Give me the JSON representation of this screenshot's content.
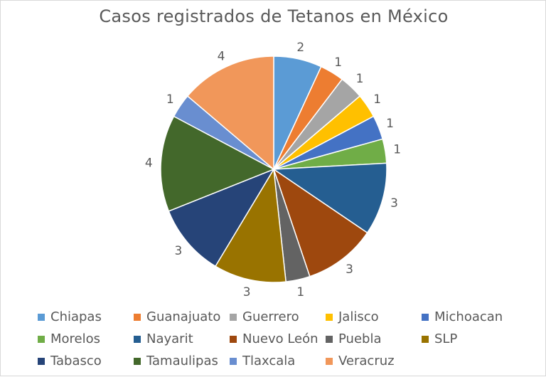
{
  "chart_data": {
    "type": "pie",
    "title": "Casos registrados de Tetanos en México",
    "start_angle_deg": 0,
    "direction": "clockwise",
    "legend_position": "bottom",
    "slices": [
      {
        "label": "Chiapas",
        "value": 2,
        "color": "#5b9bd5"
      },
      {
        "label": "Guanajuato",
        "value": 1,
        "color": "#ed7d31"
      },
      {
        "label": "Guerrero",
        "value": 1,
        "color": "#a5a5a5"
      },
      {
        "label": "Jalisco",
        "value": 1,
        "color": "#ffc000"
      },
      {
        "label": "Michoacan",
        "value": 1,
        "color": "#4472c4"
      },
      {
        "label": "Morelos",
        "value": 1,
        "color": "#70ad47"
      },
      {
        "label": "Nayarit",
        "value": 3,
        "color": "#255e91"
      },
      {
        "label": "Nuevo León",
        "value": 3,
        "color": "#9e480e"
      },
      {
        "label": "Puebla",
        "value": 1,
        "color": "#636363"
      },
      {
        "label": "SLP",
        "value": 3,
        "color": "#997300"
      },
      {
        "label": "Tabasco",
        "value": 3,
        "color": "#264478"
      },
      {
        "label": "Tamaulipas",
        "value": 4,
        "color": "#43682b"
      },
      {
        "label": "Tlaxcala",
        "value": 1,
        "color": "#698ed0"
      },
      {
        "label": "Veracruz",
        "value": 4,
        "color": "#f1975a"
      }
    ]
  }
}
